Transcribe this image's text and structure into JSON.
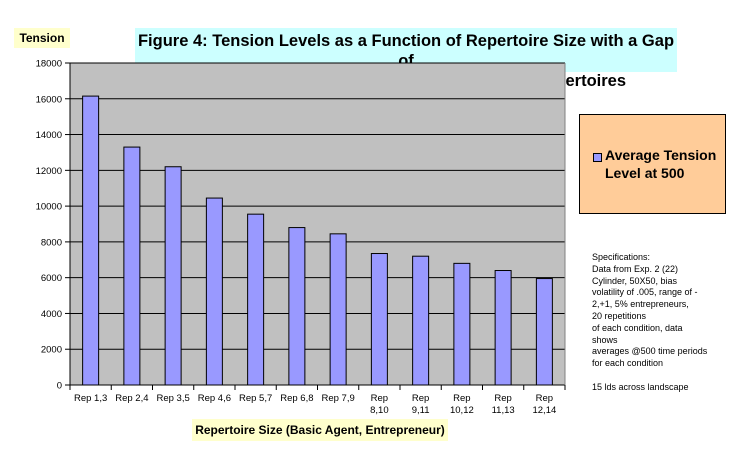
{
  "chart_data": {
    "type": "bar",
    "title": "Figure 4: Tension Levels as a Function of Repertoire Size with a Gap of Two between Basic Agent and Entrepreneur Repertoires",
    "title_lines": [
      "Figure 4: Tension Levels as a Function of Repertoire Size with a Gap of",
      "Two between Basic Agent and Entrepreneur Repertoires"
    ],
    "ylabel": "Tension",
    "xlabel": "Repertoire Size (Basic Agent, Entrepreneur)",
    "categories": [
      [
        "Rep 1,3"
      ],
      [
        "Rep 2,4"
      ],
      [
        "Rep 3,5"
      ],
      [
        "Rep 4,6"
      ],
      [
        "Rep 5,7"
      ],
      [
        "Rep 6,8"
      ],
      [
        "Rep 7,9"
      ],
      [
        "Rep",
        "8,10"
      ],
      [
        "Rep",
        "9,11"
      ],
      [
        "Rep",
        "10,12"
      ],
      [
        "Rep",
        "11,13"
      ],
      [
        "Rep",
        "12,14"
      ]
    ],
    "series": [
      {
        "name": "Average Tension Level at 500",
        "values": [
          16150,
          13300,
          12200,
          10450,
          9550,
          8800,
          8450,
          7350,
          7200,
          6800,
          6400,
          5950
        ]
      }
    ],
    "ylim": [
      0,
      18000
    ],
    "yticks": [
      0,
      2000,
      4000,
      6000,
      8000,
      10000,
      12000,
      14000,
      16000,
      18000
    ],
    "grid": true,
    "legend_position": "right",
    "colors": {
      "bar": "#9999ff",
      "plot_bg": "#c0c0c0",
      "title_bg": "#ccffff",
      "label_bg": "#ffffcc",
      "legend_bg": "#ffcc99"
    }
  },
  "legend": {
    "label": "Average Tension Level at 500"
  },
  "specifications": [
    "Specifications:",
    "Data from Exp. 2 (22)",
    "Cylinder, 50X50, bias",
    "volatility of .005, range of -",
    "2,+1,  5% entrepreneurs,",
    " 20 repetitions",
    "of each condition, data",
    "shows",
    "averages @500 time periods",
    "for each condition",
    "",
    "15 lds across landscape"
  ]
}
